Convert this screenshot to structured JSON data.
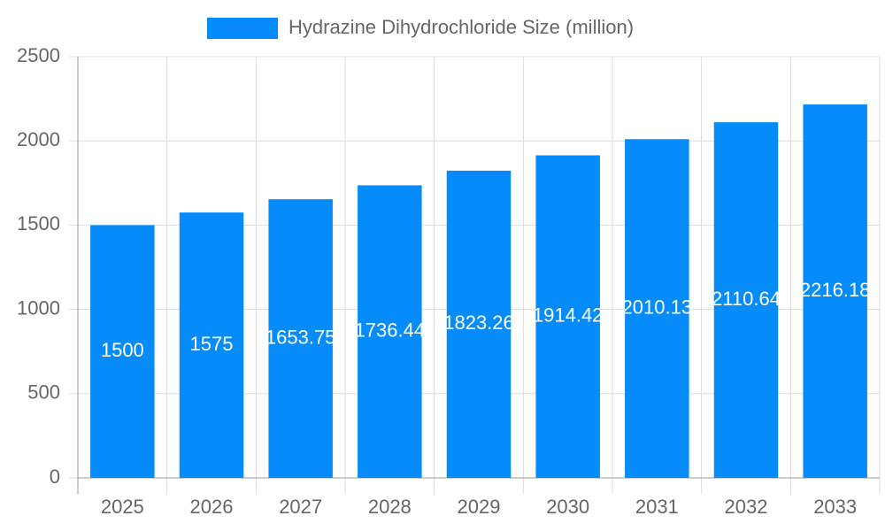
{
  "chart_data": {
    "type": "bar",
    "legend": "Hydrazine Dihydrochloride Size (million)",
    "categories": [
      "2025",
      "2026",
      "2027",
      "2028",
      "2029",
      "2030",
      "2031",
      "2032",
      "2033"
    ],
    "values": [
      1500,
      1575,
      1653.75,
      1736.44,
      1823.26,
      1914.42,
      2010.13,
      2110.64,
      2216.18
    ],
    "color": "#068cfa",
    "ylim": [
      0,
      2500
    ],
    "yticks": [
      0,
      500,
      1000,
      1500,
      2000,
      2500
    ],
    "grid": true,
    "legend_position": "top"
  }
}
